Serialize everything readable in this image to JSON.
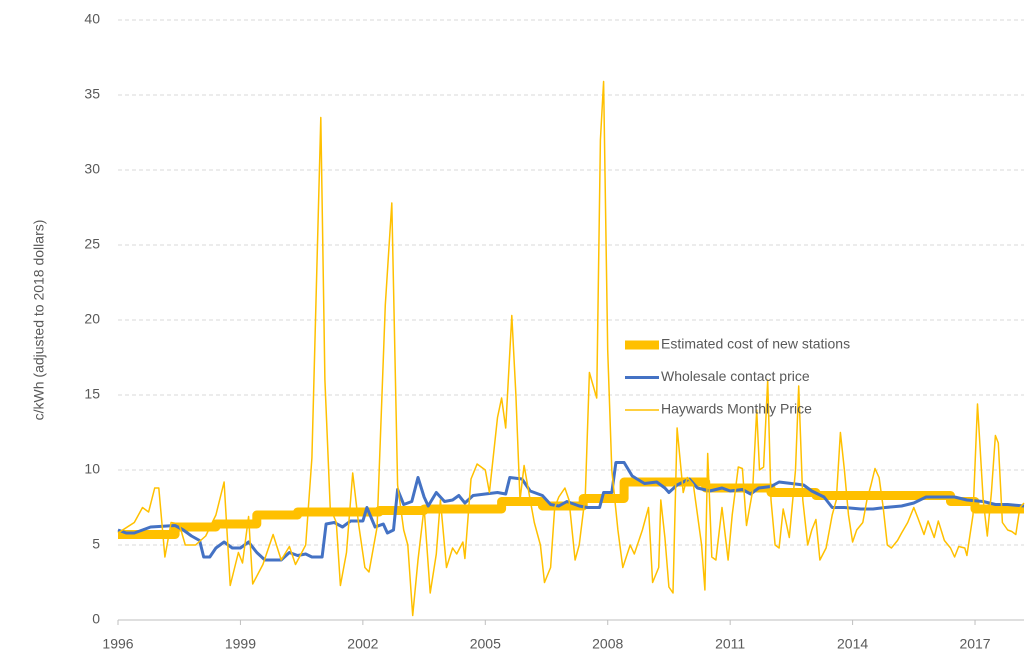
{
  "chart_data": {
    "type": "line",
    "y_label": "c/kWh (adjusted to 2018 dollars)",
    "xlim": [
      1996,
      2018.2
    ],
    "xticks": [
      1996,
      1999,
      2002,
      2005,
      2008,
      2011,
      2014,
      2017
    ],
    "ylim": [
      0,
      40
    ],
    "yticks": [
      0,
      5,
      10,
      15,
      20,
      25,
      30,
      35,
      40
    ],
    "grid": true,
    "legend_position": "center right",
    "series": [
      {
        "name": "Estimated cost of new stations",
        "color": "#FFC000",
        "x": [
          1996,
          1997.4,
          1997.4,
          1998.4,
          1998.4,
          1999.4,
          1999.4,
          2000.4,
          2000.4,
          2002.4,
          2002.4,
          2003.5,
          2003.5,
          2005.4,
          2005.4,
          2006.4,
          2006.4,
          2007.4,
          2007.4,
          2008.4,
          2008.4,
          2010.4,
          2010.4,
          2012.0,
          2012.0,
          2013.1,
          2013.1,
          2016.4,
          2016.4,
          2017.0,
          2017.0,
          2018.2
        ],
        "values": [
          5.7,
          5.7,
          6.2,
          6.2,
          6.4,
          6.4,
          7.0,
          7.0,
          7.2,
          7.2,
          7.3,
          7.3,
          7.4,
          7.4,
          7.9,
          7.9,
          7.6,
          7.6,
          8.1,
          8.1,
          9.2,
          9.2,
          8.8,
          8.8,
          8.5,
          8.5,
          8.3,
          8.3,
          7.9,
          7.9,
          7.4,
          7.4
        ]
      },
      {
        "name": "Wholesale contact price",
        "color": "#4472C4",
        "x": [
          1996.0,
          1996.2,
          1996.4,
          1996.6,
          1996.8,
          1997.4,
          1997.6,
          1997.8,
          1998.0,
          1998.1,
          1998.25,
          1998.4,
          1998.6,
          1998.8,
          1999.0,
          1999.2,
          1999.4,
          1999.6,
          2000.0,
          2000.2,
          2000.4,
          2000.6,
          2000.75,
          2001.0,
          2001.1,
          2001.3,
          2001.5,
          2001.7,
          2002.0,
          2002.1,
          2002.3,
          2002.5,
          2002.6,
          2002.75,
          2002.85,
          2003.0,
          2003.2,
          2003.35,
          2003.5,
          2003.6,
          2003.8,
          2004.0,
          2004.2,
          2004.35,
          2004.5,
          2004.7,
          2005.0,
          2005.3,
          2005.5,
          2005.6,
          2005.9,
          2006.1,
          2006.4,
          2006.6,
          2006.8,
          2007.0,
          2007.3,
          2007.5,
          2007.8,
          2007.9,
          2008.1,
          2008.2,
          2008.4,
          2008.6,
          2008.9,
          2009.2,
          2009.4,
          2009.5,
          2009.7,
          2010.0,
          2010.2,
          2010.5,
          2010.8,
          2011.0,
          2011.3,
          2011.5,
          2011.7,
          2012.0,
          2012.2,
          2012.5,
          2012.8,
          2013.0,
          2013.3,
          2013.5,
          2013.8,
          2014.2,
          2014.5,
          2014.8,
          2015.2,
          2015.5,
          2015.8,
          2016.2,
          2016.5,
          2016.8,
          2017.2,
          2017.5,
          2017.8,
          2018.2
        ],
        "values": [
          6.0,
          5.8,
          5.8,
          6.0,
          6.2,
          6.3,
          6.0,
          5.6,
          5.3,
          4.2,
          4.2,
          4.8,
          5.2,
          4.8,
          4.8,
          5.2,
          4.5,
          4.0,
          4.0,
          4.5,
          4.3,
          4.4,
          4.2,
          4.2,
          6.4,
          6.5,
          6.2,
          6.6,
          6.6,
          7.5,
          6.2,
          6.4,
          5.8,
          6.0,
          8.7,
          7.7,
          7.9,
          9.5,
          8.2,
          7.6,
          8.5,
          7.9,
          8.0,
          8.3,
          7.8,
          8.3,
          8.4,
          8.5,
          8.4,
          9.5,
          9.4,
          8.6,
          8.3,
          7.7,
          7.6,
          7.9,
          7.6,
          7.5,
          7.5,
          8.5,
          8.5,
          10.5,
          10.5,
          9.6,
          9.1,
          9.2,
          8.8,
          8.5,
          9.0,
          9.4,
          8.8,
          8.6,
          8.8,
          8.6,
          8.7,
          8.4,
          8.8,
          8.9,
          9.2,
          9.1,
          9.0,
          8.6,
          8.2,
          7.5,
          7.5,
          7.4,
          7.4,
          7.5,
          7.6,
          7.8,
          8.2,
          8.2,
          8.2,
          8.0,
          7.9,
          7.7,
          7.7,
          7.6
        ]
      },
      {
        "name": "Haywards Monthly Price",
        "color": "#FFC000",
        "x": [
          1996.0,
          1996.4,
          1996.6,
          1996.75,
          1996.9,
          1997.0,
          1997.15,
          1997.3,
          1997.5,
          1997.65,
          1997.9,
          1998.15,
          1998.4,
          1998.6,
          1998.75,
          1998.95,
          1999.05,
          1999.2,
          1999.3,
          1999.55,
          1999.8,
          2000.0,
          2000.2,
          2000.35,
          2000.6,
          2000.75,
          2000.97,
          2001.07,
          2001.2,
          2001.35,
          2001.45,
          2001.6,
          2001.75,
          2001.9,
          2002.05,
          2002.15,
          2002.35,
          2002.55,
          2002.71,
          2002.85,
          2003.0,
          2003.1,
          2003.22,
          2003.35,
          2003.5,
          2003.65,
          2003.8,
          2003.9,
          2004.05,
          2004.2,
          2004.3,
          2004.45,
          2004.5,
          2004.65,
          2004.8,
          2005.0,
          2005.1,
          2005.3,
          2005.4,
          2005.5,
          2005.65,
          2005.75,
          2005.85,
          2005.95,
          2006.1,
          2006.2,
          2006.35,
          2006.45,
          2006.6,
          2006.7,
          2006.8,
          2006.95,
          2007.05,
          2007.2,
          2007.3,
          2007.45,
          2007.55,
          2007.73,
          2007.82,
          2007.9,
          2008.0,
          2008.1,
          2008.25,
          2008.37,
          2008.55,
          2008.65,
          2008.85,
          2009.0,
          2009.1,
          2009.25,
          2009.3,
          2009.4,
          2009.5,
          2009.6,
          2009.7,
          2009.85,
          2009.95,
          2010.1,
          2010.2,
          2010.3,
          2010.38,
          2010.45,
          2010.55,
          2010.65,
          2010.8,
          2010.95,
          2011.05,
          2011.2,
          2011.3,
          2011.4,
          2011.55,
          2011.65,
          2011.72,
          2011.82,
          2011.92,
          2012.0,
          2012.1,
          2012.2,
          2012.3,
          2012.45,
          2012.6,
          2012.68,
          2012.78,
          2012.9,
          2013.0,
          2013.1,
          2013.2,
          2013.35,
          2013.5,
          2013.6,
          2013.7,
          2013.8,
          2013.9,
          2014.0,
          2014.1,
          2014.25,
          2014.35,
          2014.45,
          2014.55,
          2014.65,
          2014.75,
          2014.85,
          2014.95,
          2015.1,
          2015.2,
          2015.35,
          2015.5,
          2015.6,
          2015.75,
          2015.85,
          2016.0,
          2016.1,
          2016.25,
          2016.4,
          2016.5,
          2016.6,
          2016.75,
          2016.8,
          2016.95,
          2017.06,
          2017.2,
          2017.3,
          2017.4,
          2017.5,
          2017.57,
          2017.67,
          2017.8,
          2017.9,
          2018.0,
          2018.1,
          2018.2
        ],
        "values": [
          5.8,
          6.5,
          7.5,
          7.2,
          8.8,
          8.8,
          4.2,
          6.5,
          6.4,
          5.0,
          5.0,
          5.6,
          7.0,
          9.2,
          2.3,
          4.5,
          3.8,
          6.9,
          2.4,
          3.7,
          5.7,
          4.0,
          4.9,
          3.7,
          5.0,
          10.8,
          33.5,
          16,
          7.5,
          6.5,
          2.3,
          4.5,
          9.8,
          6.3,
          3.5,
          3.2,
          6.2,
          21,
          27.8,
          9.0,
          6.0,
          5.0,
          0.3,
          4.0,
          7.5,
          1.8,
          4.4,
          8.0,
          3.5,
          4.8,
          4.4,
          5.2,
          4.1,
          9.4,
          10.4,
          10.0,
          8.5,
          13.5,
          14.8,
          12.8,
          20.3,
          15,
          8.0,
          10.3,
          8.0,
          6.5,
          5.0,
          2.5,
          3.5,
          7.5,
          8.2,
          8.8,
          8.0,
          4.0,
          5.0,
          8.3,
          16.5,
          14.8,
          32,
          35.9,
          18,
          10,
          6.0,
          3.5,
          5.0,
          4.4,
          6.0,
          7.5,
          2.5,
          3.5,
          8.0,
          5.5,
          2.2,
          1.8,
          12.8,
          8.5,
          9.5,
          9.0,
          7.0,
          5.0,
          2.0,
          11.1,
          4.2,
          4.0,
          7.5,
          4.0,
          7.0,
          10.2,
          10.1,
          6.3,
          8.6,
          14,
          10,
          10.2,
          16,
          8.0,
          5.0,
          4.8,
          7.4,
          5.5,
          10,
          15.6,
          8.0,
          5.0,
          6.0,
          6.7,
          4.0,
          4.8,
          7.0,
          8.0,
          12.5,
          10,
          7.0,
          5.2,
          6.0,
          6.5,
          8.0,
          9.0,
          10.1,
          9.5,
          7.5,
          5.0,
          4.8,
          5.3,
          5.8,
          6.5,
          7.5,
          6.8,
          5.7,
          6.6,
          5.5,
          6.6,
          5.3,
          4.8,
          4.2,
          4.9,
          4.8,
          4.3,
          7.0,
          14.4,
          8.0,
          5.6,
          8.5,
          12.3,
          11.8,
          6.5,
          6.0,
          5.9,
          5.7,
          7.5,
          7.8
        ]
      }
    ]
  }
}
